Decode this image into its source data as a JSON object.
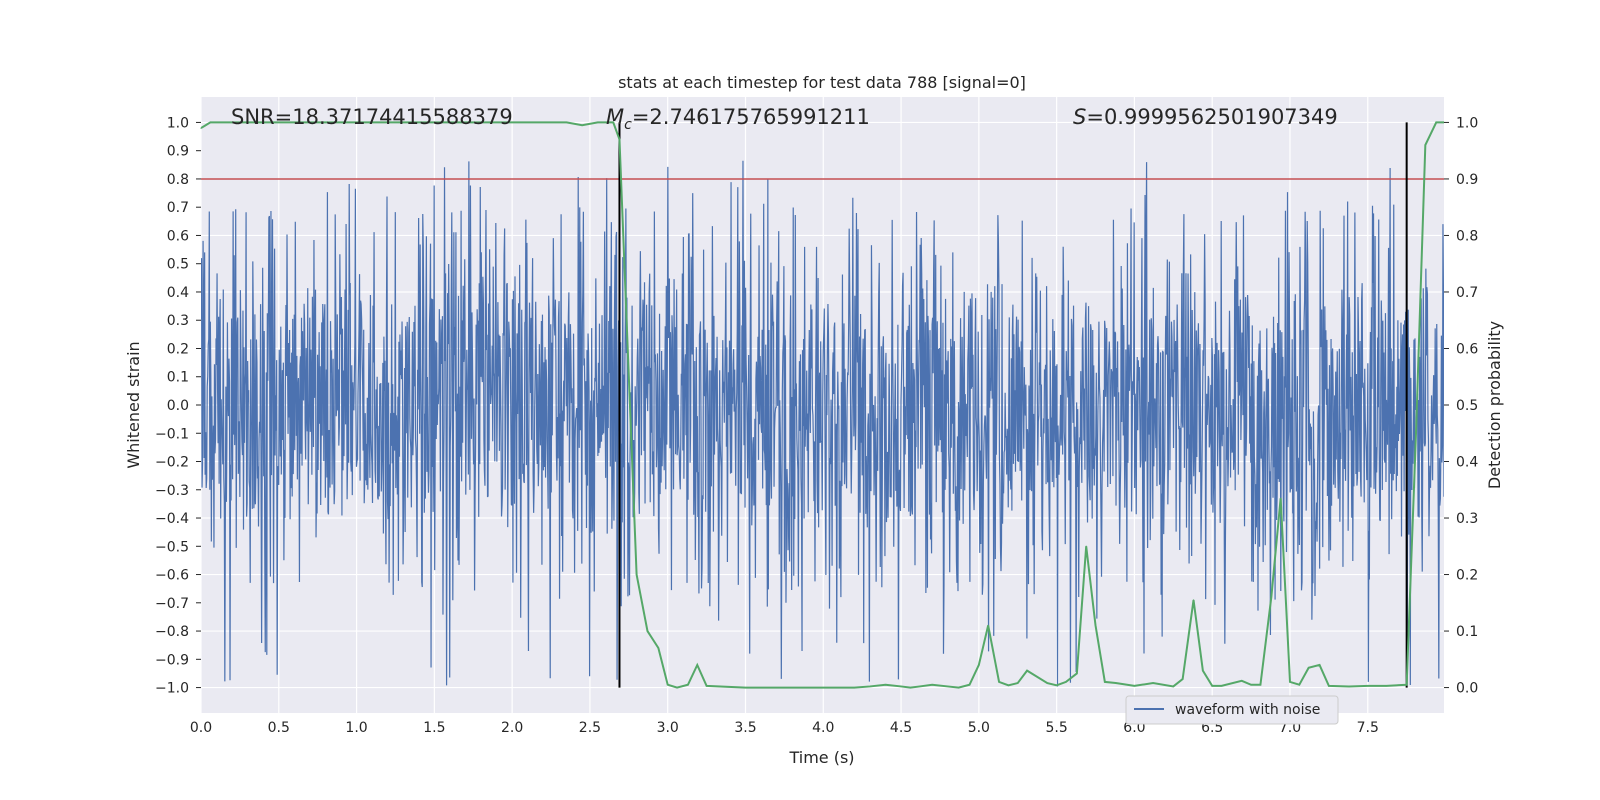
{
  "chart_data": {
    "type": "line",
    "title": "stats at each timestep for test data 788 [signal=0]",
    "xlabel": "Time (s)",
    "ylabel": "Whitened strain",
    "y2label": "Detection probability",
    "xlim": [
      0.0,
      7.99
    ],
    "ylim": [
      -1.09,
      1.09
    ],
    "y2lim": [
      -0.045,
      1.045
    ],
    "xticks": [
      "0.0",
      "0.5",
      "1.0",
      "1.5",
      "2.0",
      "2.5",
      "3.0",
      "3.5",
      "4.0",
      "4.5",
      "5.0",
      "5.5",
      "6.0",
      "6.5",
      "7.0",
      "7.5"
    ],
    "yticks": [
      "1.0",
      "0.9",
      "0.8",
      "0.7",
      "0.6",
      "0.5",
      "0.4",
      "0.3",
      "0.2",
      "0.1",
      "0.0",
      "−0.1",
      "−0.2",
      "−0.3",
      "−0.4",
      "−0.5",
      "−0.6",
      "−0.7",
      "−0.8",
      "−0.9",
      "−1.0"
    ],
    "y2ticks": [
      "1.0",
      "0.9",
      "0.8",
      "0.7",
      "0.6",
      "0.5",
      "0.4",
      "0.3",
      "0.2",
      "0.1",
      "0.0"
    ],
    "annotations": {
      "snr": "SNR=18.37174415588379",
      "mc_symbol": "M",
      "mc_sub": "c",
      "mc_value": "=2.746175765991211",
      "s_symbol": "S",
      "s_value": "=0.9999562501907349"
    },
    "threshold": {
      "value": 0.9,
      "axis": "right",
      "color": "#c44e52"
    },
    "vertical_lines": [
      {
        "x": 2.69,
        "y_range": [
          -1.0,
          1.0
        ],
        "color": "#000000"
      },
      {
        "x": 7.75,
        "y_range": [
          -1.0,
          1.0
        ],
        "color": "#000000"
      }
    ],
    "series": [
      {
        "name": "waveform with noise",
        "color": "#4c72b0",
        "axis": "left",
        "kind": "dense noise trace",
        "envelope": {
          "upper_typical": 0.3,
          "lower_typical": -0.3,
          "peak_max": 0.9,
          "peak_min": -1.0
        },
        "x_range": [
          0.0,
          7.99
        ]
      },
      {
        "name": "detection probability",
        "color": "#55a868",
        "axis": "right",
        "x": [
          0.0,
          0.06,
          0.3,
          0.6,
          1.0,
          1.5,
          2.0,
          2.35,
          2.45,
          2.55,
          2.65,
          2.69,
          2.75,
          2.8,
          2.87,
          2.94,
          3.0,
          3.06,
          3.13,
          3.19,
          3.25,
          3.5,
          3.75,
          4.0,
          4.2,
          4.3,
          4.4,
          4.5,
          4.56,
          4.62,
          4.7,
          4.8,
          4.87,
          4.94,
          5.0,
          5.06,
          5.13,
          5.19,
          5.25,
          5.31,
          5.44,
          5.5,
          5.56,
          5.63,
          5.69,
          5.75,
          5.81,
          5.88,
          6.0,
          6.12,
          6.25,
          6.31,
          6.38,
          6.44,
          6.5,
          6.56,
          6.69,
          6.75,
          6.81,
          6.88,
          6.94,
          7.0,
          7.06,
          7.12,
          7.19,
          7.25,
          7.38,
          7.5,
          7.62,
          7.75,
          7.81,
          7.87,
          7.94,
          7.99
        ],
        "values": [
          0.99,
          1.0,
          1.0,
          1.0,
          1.0,
          1.0,
          1.0,
          1.0,
          0.995,
          1.0,
          1.0,
          0.97,
          0.55,
          0.2,
          0.1,
          0.07,
          0.005,
          0.0,
          0.005,
          0.04,
          0.003,
          0.0,
          0.0,
          0.0,
          0.0,
          0.002,
          0.005,
          0.002,
          0.0,
          0.002,
          0.005,
          0.002,
          0.0,
          0.005,
          0.04,
          0.11,
          0.01,
          0.004,
          0.008,
          0.03,
          0.008,
          0.004,
          0.01,
          0.025,
          0.25,
          0.11,
          0.01,
          0.008,
          0.003,
          0.008,
          0.002,
          0.015,
          0.155,
          0.03,
          0.003,
          0.003,
          0.012,
          0.005,
          0.005,
          0.16,
          0.335,
          0.01,
          0.005,
          0.035,
          0.04,
          0.003,
          0.002,
          0.003,
          0.003,
          0.005,
          0.45,
          0.96,
          1.0,
          1.0
        ]
      }
    ],
    "legend": {
      "label": "waveform with noise",
      "placement": "lower-right"
    }
  }
}
